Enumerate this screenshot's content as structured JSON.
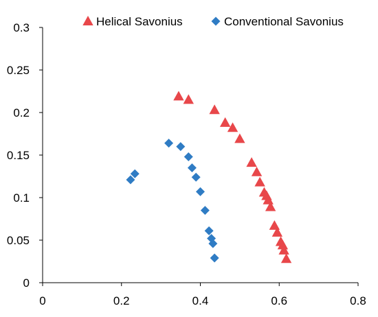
{
  "chart_data": {
    "type": "scatter",
    "title": "",
    "xlabel": "",
    "ylabel": "",
    "xlim": [
      0,
      0.8
    ],
    "ylim": [
      0,
      0.3
    ],
    "x_ticks": [
      "0",
      "0.2",
      "0.4",
      "0.6",
      "0.8"
    ],
    "y_ticks": [
      "0",
      "0.05",
      "0.1",
      "0.15",
      "0.2",
      "0.25",
      "0.3"
    ],
    "grid": false,
    "legend_position": "top",
    "series": [
      {
        "name": "Helical Savonius",
        "marker": "triangle",
        "color": "#e8474a",
        "points": [
          {
            "x": 0.345,
            "y": 0.219
          },
          {
            "x": 0.37,
            "y": 0.215
          },
          {
            "x": 0.436,
            "y": 0.203
          },
          {
            "x": 0.463,
            "y": 0.188
          },
          {
            "x": 0.482,
            "y": 0.182
          },
          {
            "x": 0.5,
            "y": 0.169
          },
          {
            "x": 0.53,
            "y": 0.141
          },
          {
            "x": 0.543,
            "y": 0.13
          },
          {
            "x": 0.551,
            "y": 0.118
          },
          {
            "x": 0.562,
            "y": 0.106
          },
          {
            "x": 0.568,
            "y": 0.102
          },
          {
            "x": 0.572,
            "y": 0.097
          },
          {
            "x": 0.578,
            "y": 0.089
          },
          {
            "x": 0.588,
            "y": 0.067
          },
          {
            "x": 0.595,
            "y": 0.059
          },
          {
            "x": 0.604,
            "y": 0.048
          },
          {
            "x": 0.609,
            "y": 0.044
          },
          {
            "x": 0.612,
            "y": 0.038
          },
          {
            "x": 0.618,
            "y": 0.028
          }
        ]
      },
      {
        "name": "Conventional Savonius",
        "marker": "diamond",
        "color": "#2f7cc4",
        "points": [
          {
            "x": 0.223,
            "y": 0.121
          },
          {
            "x": 0.234,
            "y": 0.128
          },
          {
            "x": 0.32,
            "y": 0.164
          },
          {
            "x": 0.35,
            "y": 0.16
          },
          {
            "x": 0.37,
            "y": 0.148
          },
          {
            "x": 0.379,
            "y": 0.135
          },
          {
            "x": 0.389,
            "y": 0.124
          },
          {
            "x": 0.4,
            "y": 0.107
          },
          {
            "x": 0.412,
            "y": 0.085
          },
          {
            "x": 0.422,
            "y": 0.061
          },
          {
            "x": 0.428,
            "y": 0.052
          },
          {
            "x": 0.432,
            "y": 0.046
          },
          {
            "x": 0.436,
            "y": 0.029
          }
        ]
      }
    ]
  }
}
